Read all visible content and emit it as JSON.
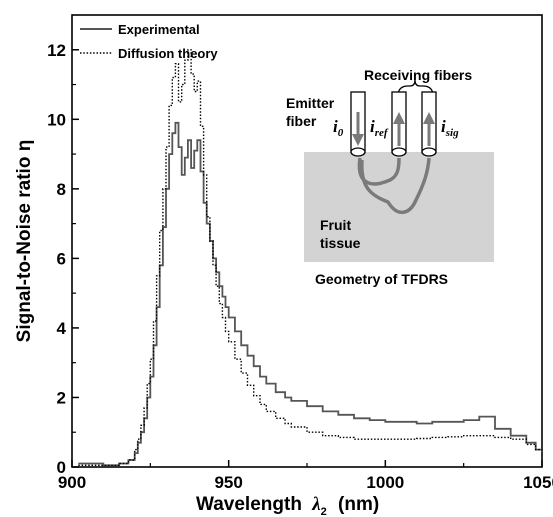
{
  "chart_data": {
    "type": "line",
    "xlabel": "Wavelength",
    "xlabel_symbol": "λ",
    "xlabel_symbol_sub": "2",
    "xlabel_unit": "(nm)",
    "ylabel": "Signal-to-Noise ratio η",
    "xlim": [
      900,
      1050
    ],
    "ylim": [
      0,
      13
    ],
    "xticks": [
      "900",
      "950",
      "1000",
      "1050"
    ],
    "yticks": [
      "0",
      "2",
      "4",
      "6",
      "8",
      "10",
      "12"
    ],
    "legend_position": "top-left",
    "series": [
      {
        "name": "Experimental",
        "style": "solid",
        "color": "#555555",
        "x": [
          902,
          905,
          910,
          915,
          918,
          920,
          921,
          922,
          923,
          924,
          925,
          926,
          927,
          928,
          929,
          930,
          931,
          932,
          933,
          934,
          935,
          936,
          937,
          938,
          939,
          940,
          941,
          942,
          943,
          944,
          945,
          946,
          947,
          948,
          949,
          950,
          952,
          954,
          956,
          958,
          960,
          962,
          965,
          968,
          970,
          975,
          980,
          985,
          990,
          995,
          1000,
          1005,
          1010,
          1015,
          1020,
          1025,
          1030,
          1035,
          1040,
          1045,
          1048,
          1050
        ],
        "y": [
          0.1,
          0.1,
          0.05,
          0.1,
          0.2,
          0.4,
          0.7,
          1.0,
          1.4,
          2.0,
          2.6,
          3.5,
          4.6,
          5.8,
          6.9,
          8.0,
          9.0,
          9.6,
          9.9,
          9.2,
          8.4,
          8.9,
          9.4,
          8.6,
          9.1,
          9.4,
          8.5,
          7.6,
          7.0,
          6.5,
          6.0,
          5.6,
          5.2,
          4.9,
          4.6,
          4.3,
          3.9,
          3.5,
          3.2,
          2.9,
          2.6,
          2.4,
          2.15,
          2.0,
          1.9,
          1.75,
          1.6,
          1.5,
          1.4,
          1.35,
          1.3,
          1.3,
          1.25,
          1.3,
          1.3,
          1.35,
          1.45,
          1.1,
          0.9,
          0.7,
          0.5,
          0.4
        ]
      },
      {
        "name": "Diffusion theory",
        "style": "dotted",
        "color": "#000000",
        "x": [
          902,
          905,
          910,
          915,
          918,
          920,
          921,
          922,
          923,
          924,
          925,
          926,
          927,
          928,
          929,
          930,
          931,
          932,
          933,
          934,
          935,
          936,
          937,
          938,
          939,
          940,
          941,
          942,
          943,
          944,
          945,
          946,
          947,
          948,
          949,
          950,
          952,
          954,
          956,
          958,
          960,
          962,
          965,
          968,
          970,
          975,
          980,
          985,
          990,
          995,
          1000,
          1005,
          1010,
          1015,
          1020,
          1025,
          1030,
          1035,
          1040,
          1045,
          1048,
          1050
        ],
        "y": [
          0.05,
          0.05,
          0.05,
          0.1,
          0.2,
          0.5,
          0.8,
          1.2,
          1.7,
          2.4,
          3.1,
          4.2,
          5.5,
          6.8,
          8.0,
          9.2,
          10.4,
          11.2,
          11.6,
          10.5,
          11.0,
          11.7,
          12.0,
          11.3,
          10.8,
          11.1,
          9.8,
          8.4,
          7.2,
          6.5,
          5.8,
          5.2,
          4.7,
          4.3,
          3.9,
          3.6,
          3.1,
          2.7,
          2.35,
          2.05,
          1.8,
          1.6,
          1.4,
          1.25,
          1.15,
          1.0,
          0.9,
          0.85,
          0.8,
          0.8,
          0.8,
          0.8,
          0.82,
          0.85,
          0.87,
          0.9,
          0.9,
          0.85,
          0.8,
          0.65,
          0.5,
          0.4
        ]
      }
    ],
    "inset": {
      "title": "Geometry of TFDRS",
      "receiving_label": "Receiving fibers",
      "emitter_label_1": "Emitter",
      "emitter_label_2": "fiber",
      "tissue_label_1": "Fruit",
      "tissue_label_2": "tissue",
      "i0_main": "i",
      "i0_sub": "0",
      "iref_main": "i",
      "iref_sub": "ref",
      "isig_main": "i",
      "isig_sub": "sig",
      "tissue_color": "#d3d3d3",
      "path_color": "#7a7a7a"
    }
  }
}
